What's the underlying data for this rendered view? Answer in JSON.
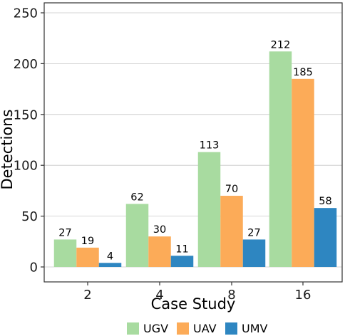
{
  "chart_data": {
    "type": "bar",
    "xlabel": "Case Study",
    "ylabel": "Detections",
    "categories": [
      "2",
      "4",
      "8",
      "16"
    ],
    "ylim": [
      0,
      260
    ],
    "yticks": [
      0,
      50,
      100,
      150,
      200,
      250
    ],
    "grid": true,
    "legend_position": "bottom",
    "series": [
      {
        "name": "UGV",
        "color": "#a8dba0",
        "values": [
          27,
          62,
          113,
          212
        ]
      },
      {
        "name": "UAV",
        "color": "#fcab58",
        "values": [
          19,
          30,
          70,
          185
        ]
      },
      {
        "name": "UMV",
        "color": "#2e86c1",
        "values": [
          4,
          11,
          27,
          58
        ]
      }
    ]
  }
}
